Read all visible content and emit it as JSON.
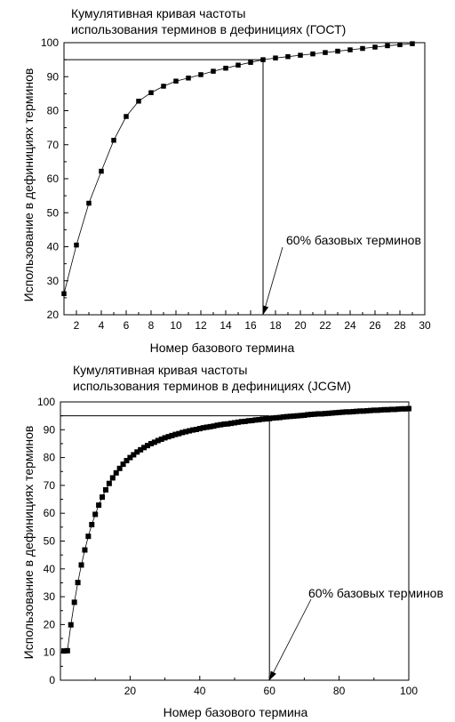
{
  "chart_data": [
    {
      "type": "scatter",
      "title_line1": "Кумулятивная кривая частоты",
      "title_line2": "использования терминов в дефинициях (ГОСТ)",
      "xlabel": "Номер базового термина",
      "ylabel": "Использование в дефинициях  терминов",
      "xlim": [
        1,
        30
      ],
      "ylim": [
        20,
        100
      ],
      "xticks": [
        2,
        4,
        6,
        8,
        10,
        12,
        14,
        16,
        18,
        20,
        22,
        24,
        26,
        28,
        30
      ],
      "yticks": [
        20,
        30,
        40,
        50,
        60,
        70,
        80,
        90,
        100
      ],
      "hline_y": 95,
      "vline_x": 17,
      "annotation": "60% базовых терминов",
      "annotation_target": [
        17,
        20
      ],
      "x": [
        1,
        2,
        3,
        4,
        5,
        6,
        7,
        8,
        9,
        10,
        11,
        12,
        13,
        14,
        15,
        16,
        17,
        18,
        19,
        20,
        21,
        22,
        23,
        24,
        25,
        26,
        27,
        28,
        29
      ],
      "y": [
        26.2,
        40.5,
        52.8,
        62.2,
        71.3,
        78.3,
        82.8,
        85.3,
        87.2,
        88.7,
        89.6,
        90.6,
        91.6,
        92.5,
        93.4,
        94.2,
        95.0,
        95.5,
        95.9,
        96.3,
        96.7,
        97.1,
        97.5,
        97.9,
        98.3,
        98.7,
        99.1,
        99.4,
        99.7
      ]
    },
    {
      "type": "scatter",
      "title_line1": "Кумулятивная кривая частоты",
      "title_line2": "использования терминов в дефинициях (JCGM)",
      "xlabel": "Номер базового термина",
      "ylabel": "Использование в дефинициях  терминов",
      "xlim": [
        0,
        100
      ],
      "ylim": [
        0,
        100
      ],
      "xticks": [
        20,
        40,
        60,
        80,
        100
      ],
      "yticks": [
        0,
        10,
        20,
        30,
        40,
        50,
        60,
        70,
        80,
        90,
        100
      ],
      "hline_y": 95,
      "vline_x": 60,
      "annotation": "60% базовых терминов",
      "annotation_target": [
        60,
        0
      ],
      "curve": {
        "n": 100,
        "a": 0.78,
        "b": 0.22,
        "k1": 7.2,
        "k2": 45
      }
    }
  ]
}
